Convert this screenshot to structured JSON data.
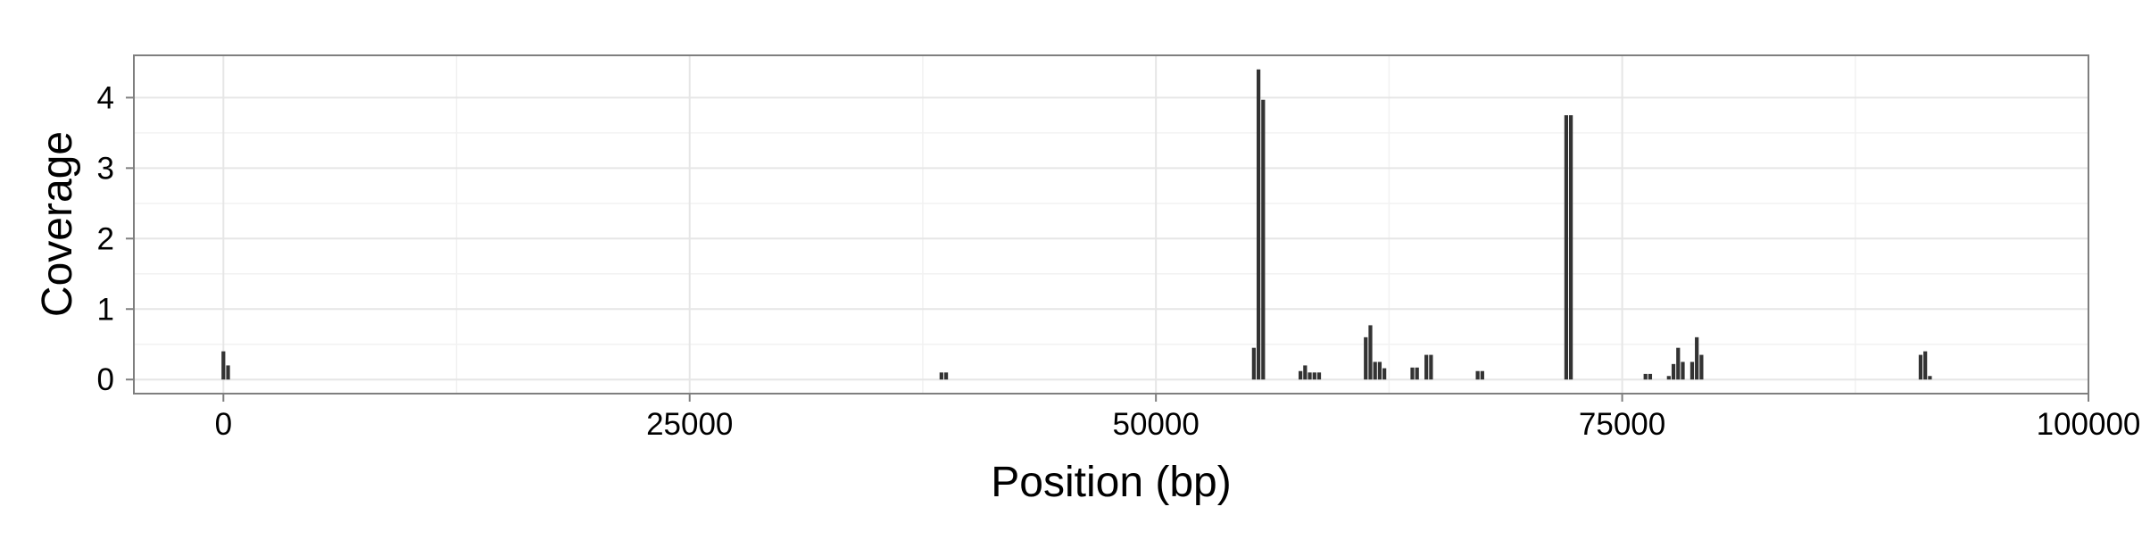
{
  "chart_data": {
    "type": "bar",
    "title": "",
    "xlabel": "Position (bp)",
    "ylabel": "Coverage",
    "xlim": [
      -4800,
      100000
    ],
    "ylim": [
      -0.2,
      4.6
    ],
    "x_ticks": [
      0,
      25000,
      50000,
      75000,
      100000
    ],
    "x_tick_labels": [
      "0",
      "25000",
      "50000",
      "75000",
      "100000"
    ],
    "y_ticks": [
      0,
      1,
      2,
      3,
      4
    ],
    "y_tick_labels": [
      "0",
      "1",
      "2",
      "3",
      "4"
    ],
    "bin_width_bp": 250,
    "grid": true,
    "legend": "none",
    "colors": {
      "bar": "#333333",
      "panel_bg": "#ffffff",
      "grid_major": "#e6e6e6",
      "grid_minor": "#f2f2f2",
      "border": "#7f7f7f"
    },
    "series": [
      {
        "points": [
          {
            "x": 0,
            "y": 0.4
          },
          {
            "x": 250,
            "y": 0.2
          },
          {
            "x": 38500,
            "y": 0.1
          },
          {
            "x": 38750,
            "y": 0.1
          },
          {
            "x": 55250,
            "y": 0.45
          },
          {
            "x": 55500,
            "y": 4.4
          },
          {
            "x": 55750,
            "y": 3.97
          },
          {
            "x": 57750,
            "y": 0.12
          },
          {
            "x": 58000,
            "y": 0.2
          },
          {
            "x": 58250,
            "y": 0.1
          },
          {
            "x": 58500,
            "y": 0.1
          },
          {
            "x": 58750,
            "y": 0.1
          },
          {
            "x": 61250,
            "y": 0.6
          },
          {
            "x": 61500,
            "y": 0.77
          },
          {
            "x": 61750,
            "y": 0.25
          },
          {
            "x": 62000,
            "y": 0.25
          },
          {
            "x": 62250,
            "y": 0.16
          },
          {
            "x": 63750,
            "y": 0.17
          },
          {
            "x": 64000,
            "y": 0.17
          },
          {
            "x": 64500,
            "y": 0.35
          },
          {
            "x": 64750,
            "y": 0.35
          },
          {
            "x": 67250,
            "y": 0.12
          },
          {
            "x": 67500,
            "y": 0.12
          },
          {
            "x": 72000,
            "y": 3.75
          },
          {
            "x": 72250,
            "y": 3.75
          },
          {
            "x": 76250,
            "y": 0.08
          },
          {
            "x": 76500,
            "y": 0.08
          },
          {
            "x": 77500,
            "y": 0.05
          },
          {
            "x": 77750,
            "y": 0.22
          },
          {
            "x": 78000,
            "y": 0.45
          },
          {
            "x": 78250,
            "y": 0.25
          },
          {
            "x": 78750,
            "y": 0.25
          },
          {
            "x": 79000,
            "y": 0.6
          },
          {
            "x": 79250,
            "y": 0.35
          },
          {
            "x": 91000,
            "y": 0.35
          },
          {
            "x": 91250,
            "y": 0.4
          },
          {
            "x": 91500,
            "y": 0.05
          }
        ]
      }
    ]
  }
}
